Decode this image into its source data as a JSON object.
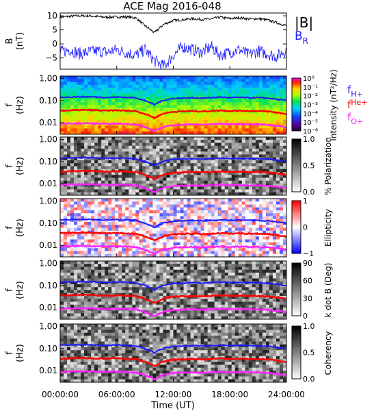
{
  "title": "ACE Mag 2016-048",
  "colors": {
    "B_total": "#000000",
    "B_R": "#1a1aff",
    "f_H": "#1a1aff",
    "f_He": "#ff0000",
    "f_O": "#ff22ff"
  },
  "chart_data": [
    {
      "type": "line",
      "panel": "magnetic-field",
      "ylabel": "B (nT)",
      "ylim": [
        -9,
        11
      ],
      "yticks": [
        10,
        5,
        0,
        -5
      ],
      "xlim": [
        0,
        24
      ],
      "series": [
        {
          "name": "|B|",
          "x": [
            0,
            1,
            2,
            3,
            4,
            5,
            6,
            7,
            8,
            9,
            10,
            11,
            12,
            13,
            14,
            15,
            16,
            17,
            18,
            19,
            20,
            21,
            22,
            23,
            24
          ],
          "values": [
            9.5,
            9.8,
            10,
            10,
            9.7,
            9.5,
            9.6,
            9.6,
            9.3,
            6.5,
            4,
            7,
            8.3,
            8.6,
            9,
            8.7,
            8.9,
            9.5,
            9,
            9.3,
            8.9,
            9,
            8.5,
            7.5,
            6.5
          ]
        },
        {
          "name": "B",
          "subscript": "R",
          "x": [
            0,
            1,
            2,
            3,
            4,
            5,
            6,
            7,
            8,
            9,
            10,
            11,
            12,
            13,
            14,
            15,
            16,
            17,
            18,
            19,
            20,
            21,
            22,
            23,
            24
          ],
          "values": [
            -3,
            -2,
            -3.5,
            -3,
            -2.5,
            -3,
            -2,
            -3,
            -4,
            -2,
            -6,
            -8,
            -4,
            -1,
            -2,
            -3,
            -1,
            -4,
            -3,
            -2,
            -4,
            -2.5,
            -3.5,
            -4.5,
            -2
          ]
        }
      ]
    },
    {
      "type": "heatmap",
      "panel": "intensity",
      "ylabel": "f (Hz)",
      "yscale": "log",
      "ylim": [
        0.003,
        1.3
      ],
      "yticks": [
        "1.00",
        "0.10",
        "0.01"
      ],
      "colorbar_label": "Intensity (nT²/Hz)",
      "colorbar_ticks": [
        "10⁰",
        "10⁻¹",
        "10⁻²",
        "10⁻³",
        "10⁻⁴",
        "10⁻⁵",
        "10⁻⁶"
      ],
      "colormap": "rainbow",
      "legend": [
        "f_H+",
        "f_He+",
        "f_O+"
      ]
    },
    {
      "type": "heatmap",
      "panel": "polarization",
      "ylabel": "f (Hz)",
      "yscale": "log",
      "colorbar_label": "% Polarization",
      "colorbar_ticks": [
        "1.0",
        "0.5",
        "0.0"
      ],
      "colormap": "grayscale"
    },
    {
      "type": "heatmap",
      "panel": "ellipticity",
      "ylabel": "f (Hz)",
      "yscale": "log",
      "colorbar_label": "Ellipticity",
      "colorbar_ticks": [
        "1",
        "0",
        "−1"
      ],
      "colormap": "blue-white-red"
    },
    {
      "type": "heatmap",
      "panel": "k-dot-b",
      "ylabel": "f (Hz)",
      "yscale": "log",
      "colorbar_label": "k dot B (Deg)",
      "colorbar_ticks": [
        "90",
        "60",
        "30",
        "0"
      ],
      "colormap": "grayscale"
    },
    {
      "type": "heatmap",
      "panel": "coherency",
      "ylabel": "f (Hz)",
      "yscale": "log",
      "colorbar_label": "Coherency",
      "colorbar_ticks": [
        "1.0",
        "0.5",
        "0.0"
      ],
      "colormap": "grayscale"
    }
  ],
  "gyrofrequencies": {
    "x": [
      0,
      1,
      2,
      3,
      4,
      5,
      6,
      7,
      8,
      9,
      10,
      11,
      12,
      13,
      14,
      15,
      16,
      17,
      18,
      19,
      20,
      21,
      22,
      23,
      24
    ],
    "f_H": [
      0.14,
      0.145,
      0.15,
      0.15,
      0.145,
      0.14,
      0.145,
      0.14,
      0.135,
      0.1,
      0.065,
      0.105,
      0.125,
      0.13,
      0.135,
      0.13,
      0.135,
      0.145,
      0.135,
      0.14,
      0.135,
      0.135,
      0.13,
      0.115,
      0.1
    ]
  },
  "xaxis": {
    "label": "Time (UT)",
    "ticks": [
      "00:00:00",
      "06:00:00",
      "12:00:00",
      "18:00:00",
      "24:00:00"
    ]
  },
  "labels": {
    "f_axis": "f",
    "hz_axis": "(Hz)",
    "b_axis": "B",
    "nt_axis": "(nT)",
    "legend_B": "|B|",
    "legend_BR": "B",
    "legend_BR_sub": "R",
    "f_letter": "f",
    "fH_sub": "H+",
    "fHe_sup": "He+",
    "fO_sub": "O+"
  }
}
